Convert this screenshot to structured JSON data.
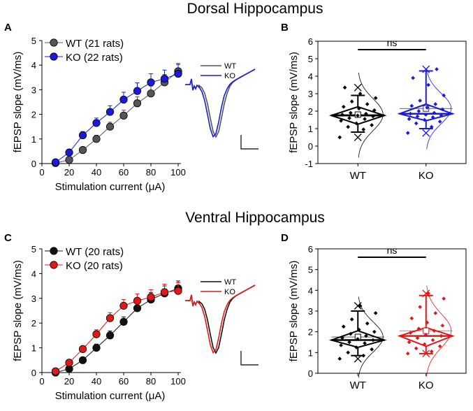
{
  "figure": {
    "dorsal_title": "Dorsal Hippocampus",
    "ventral_title": "Ventral Hippocampus"
  },
  "colors": {
    "wt_gray": "#555555",
    "wt_black": "#111111",
    "ko_blue": "#1a1adc",
    "ko_red": "#e01818",
    "axis": "#000000"
  },
  "chart_data": [
    {
      "panel": "A",
      "type": "line",
      "xlabel": "Stimulation current (μA)",
      "ylabel": "fEPSP slope (mV/ms)",
      "xlim": [
        0,
        100
      ],
      "ylim": [
        0,
        5
      ],
      "xticks": [
        0,
        20,
        40,
        60,
        80,
        100
      ],
      "yticks": [
        0,
        1,
        2,
        3,
        4,
        5
      ],
      "legend": "top-left",
      "x": [
        10,
        20,
        30,
        40,
        50,
        60,
        70,
        80,
        90,
        100
      ],
      "series": [
        {
          "name": "WT (21 rats)",
          "color": "#555555",
          "values": [
            0.02,
            0.15,
            0.55,
            1.0,
            1.5,
            1.95,
            2.45,
            2.85,
            3.3,
            3.75
          ],
          "errors": [
            0.02,
            0.06,
            0.1,
            0.15,
            0.18,
            0.22,
            0.26,
            0.3,
            0.32,
            0.32
          ]
        },
        {
          "name": "KO (22 rats)",
          "color": "#1a1adc",
          "values": [
            0.05,
            0.45,
            1.15,
            1.65,
            2.1,
            2.6,
            2.95,
            3.3,
            3.45,
            3.65
          ],
          "errors": [
            0.02,
            0.08,
            0.15,
            0.2,
            0.25,
            0.3,
            0.33,
            0.35,
            0.35,
            0.38
          ]
        }
      ],
      "trace_legend": [
        "WT",
        "KO"
      ]
    },
    {
      "panel": "B",
      "type": "box",
      "ylabel": "fEPSP slope (mV/ms)",
      "ylim": [
        -1,
        6
      ],
      "yticks": [
        -1,
        0,
        1,
        2,
        3,
        4,
        5,
        6
      ],
      "categories": [
        "WT",
        "KO"
      ],
      "significance": "ns",
      "groups": [
        {
          "name": "WT",
          "color": "#000000",
          "median": 1.75,
          "mean": 1.8,
          "q1": 1.25,
          "q3": 2.25,
          "whisker_low": 0.8,
          "whisker_high": 2.9,
          "min": 0.5,
          "max": 3.35,
          "points": [
            0.5,
            0.95,
            1.1,
            1.2,
            1.3,
            1.45,
            1.55,
            1.6,
            1.7,
            1.75,
            1.8,
            1.85,
            1.9,
            2.05,
            2.15,
            2.25,
            2.4,
            2.55,
            2.75,
            3.0,
            3.35
          ]
        },
        {
          "name": "KO",
          "color": "#1a1adc",
          "median": 1.85,
          "mean": 2.15,
          "q1": 1.45,
          "q3": 2.4,
          "whisker_low": 1.0,
          "whisker_high": 4.3,
          "min": 0.75,
          "max": 4.4,
          "points": [
            0.75,
            1.1,
            1.3,
            1.4,
            1.5,
            1.55,
            1.65,
            1.7,
            1.75,
            1.8,
            1.85,
            1.9,
            2.0,
            2.1,
            2.2,
            2.3,
            2.4,
            2.6,
            2.9,
            3.5,
            3.9,
            4.4
          ]
        }
      ]
    },
    {
      "panel": "C",
      "type": "line",
      "xlabel": "Stimulation current (μA)",
      "ylabel": "fEPSP slope (mV/ms)",
      "xlim": [
        0,
        100
      ],
      "ylim": [
        0,
        5
      ],
      "xticks": [
        0,
        20,
        40,
        60,
        80,
        100
      ],
      "yticks": [
        0,
        1,
        2,
        3,
        4,
        5
      ],
      "legend": "top-left",
      "x": [
        10,
        20,
        30,
        40,
        50,
        60,
        70,
        80,
        90,
        100
      ],
      "series": [
        {
          "name": "WT (20 rats)",
          "color": "#111111",
          "values": [
            0.0,
            0.15,
            0.5,
            1.0,
            1.5,
            2.05,
            2.6,
            2.95,
            3.2,
            3.4
          ],
          "errors": [
            0.02,
            0.05,
            0.1,
            0.15,
            0.18,
            0.2,
            0.25,
            0.28,
            0.3,
            0.3
          ]
        },
        {
          "name": "KO (20 rats)",
          "color": "#e01818",
          "values": [
            0.05,
            0.4,
            0.95,
            1.55,
            2.2,
            2.7,
            2.9,
            3.05,
            3.25,
            3.3
          ],
          "errors": [
            0.02,
            0.08,
            0.12,
            0.18,
            0.22,
            0.25,
            0.28,
            0.3,
            0.32,
            0.33
          ]
        }
      ],
      "trace_legend": [
        "WT",
        "KO"
      ]
    },
    {
      "panel": "D",
      "type": "box",
      "ylabel": "fEPSP slope (mV/ms)",
      "ylim": [
        0,
        6
      ],
      "yticks": [
        0,
        1,
        2,
        3,
        4,
        5,
        6
      ],
      "categories": [
        "WT",
        "KO"
      ],
      "significance": "ns",
      "groups": [
        {
          "name": "WT",
          "color": "#000000",
          "median": 1.6,
          "mean": 1.75,
          "q1": 1.25,
          "q3": 2.05,
          "whisker_low": 0.85,
          "whisker_high": 3.0,
          "min": 0.7,
          "max": 3.25,
          "points": [
            0.7,
            0.85,
            1.0,
            1.15,
            1.25,
            1.35,
            1.45,
            1.5,
            1.6,
            1.65,
            1.7,
            1.8,
            1.9,
            2.0,
            2.1,
            2.25,
            2.4,
            2.6,
            2.9,
            3.25
          ]
        },
        {
          "name": "KO",
          "color": "#e01818",
          "median": 1.8,
          "mean": 2.05,
          "q1": 1.3,
          "q3": 2.2,
          "whisker_low": 0.95,
          "whisker_high": 3.75,
          "min": 0.95,
          "max": 3.85,
          "points": [
            0.95,
            1.05,
            1.2,
            1.3,
            1.4,
            1.5,
            1.6,
            1.7,
            1.8,
            1.85,
            1.95,
            2.05,
            2.15,
            2.3,
            2.45,
            2.65,
            2.9,
            3.2,
            3.6,
            3.85
          ]
        }
      ]
    }
  ]
}
